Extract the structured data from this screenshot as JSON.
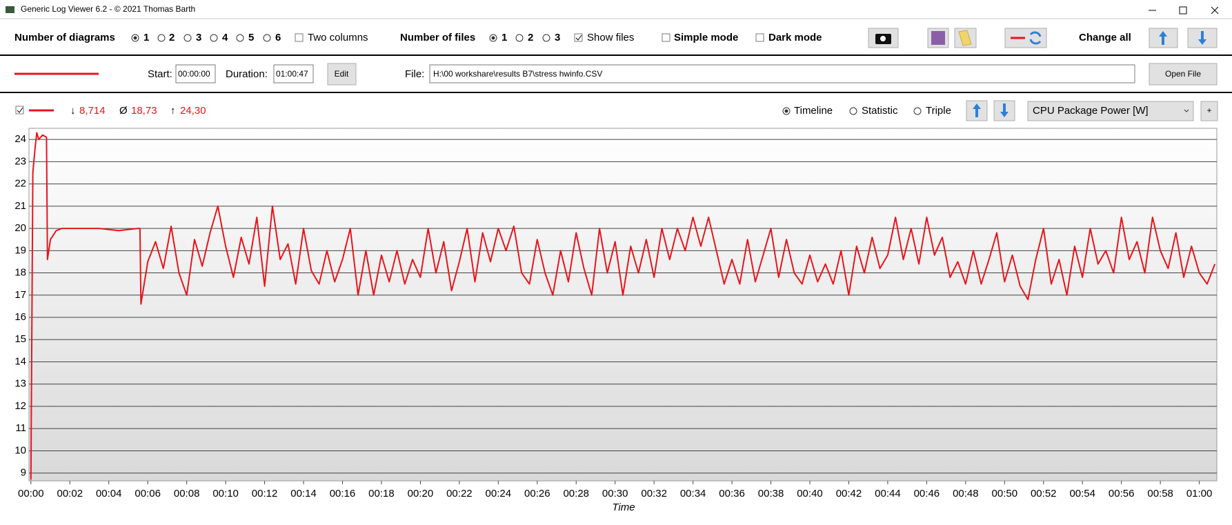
{
  "window": {
    "title": "Generic Log Viewer 6.2 - © 2021 Thomas Barth"
  },
  "toolbar": {
    "diagrams_label": "Number of diagrams",
    "diagram_options": [
      "1",
      "2",
      "3",
      "4",
      "5",
      "6"
    ],
    "two_columns": "Two columns",
    "files_label": "Number of files",
    "file_options": [
      "1",
      "2",
      "3"
    ],
    "show_files": "Show files",
    "simple_mode": "Simple mode",
    "dark_mode": "Dark mode",
    "change_all": "Change all"
  },
  "file_row": {
    "start_label": "Start:",
    "start": "00:00:00",
    "duration_label": "Duration:",
    "duration": "01:00:47",
    "edit": "Edit",
    "file_label": "File:",
    "file_path": "H:\\00 workshare\\results B7\\stress hwinfo.CSV",
    "open_file": "Open File"
  },
  "diagram_header": {
    "min_symbol": "↓",
    "min": "8,714",
    "avg_symbol": "Ø",
    "avg": "18,73",
    "max_symbol": "↑",
    "max": "24,30",
    "modes": [
      "Timeline",
      "Statistic",
      "Triple"
    ],
    "channel": "CPU Package Power [W]",
    "add": "+"
  },
  "chart_data": {
    "type": "line",
    "x_label": "Time",
    "color": "#e8141b",
    "grid": true,
    "xlim": [
      -0.1,
      60.9
    ],
    "ylim": [
      8.65,
      24.5
    ],
    "yticks": [
      9,
      10,
      11,
      12,
      13,
      14,
      15,
      16,
      17,
      18,
      19,
      20,
      21,
      22,
      23,
      24
    ],
    "xticks": [
      {
        "value": 0,
        "label": "00:00"
      },
      {
        "value": 2,
        "label": "00:02"
      },
      {
        "value": 4,
        "label": "00:04"
      },
      {
        "value": 6,
        "label": "00:06"
      },
      {
        "value": 8,
        "label": "00:08"
      },
      {
        "value": 10,
        "label": "00:10"
      },
      {
        "value": 12,
        "label": "00:12"
      },
      {
        "value": 14,
        "label": "00:14"
      },
      {
        "value": 16,
        "label": "00:16"
      },
      {
        "value": 18,
        "label": "00:18"
      },
      {
        "value": 20,
        "label": "00:20"
      },
      {
        "value": 22,
        "label": "00:22"
      },
      {
        "value": 24,
        "label": "00:24"
      },
      {
        "value": 26,
        "label": "00:26"
      },
      {
        "value": 28,
        "label": "00:28"
      },
      {
        "value": 30,
        "label": "00:30"
      },
      {
        "value": 32,
        "label": "00:32"
      },
      {
        "value": 34,
        "label": "00:34"
      },
      {
        "value": 36,
        "label": "00:36"
      },
      {
        "value": 38,
        "label": "00:38"
      },
      {
        "value": 40,
        "label": "00:40"
      },
      {
        "value": 42,
        "label": "00:42"
      },
      {
        "value": 44,
        "label": "00:44"
      },
      {
        "value": 46,
        "label": "00:46"
      },
      {
        "value": 48,
        "label": "00:48"
      },
      {
        "value": 50,
        "label": "00:50"
      },
      {
        "value": 52,
        "label": "00:52"
      },
      {
        "value": 54,
        "label": "00:54"
      },
      {
        "value": 56,
        "label": "00:56"
      },
      {
        "value": 58,
        "label": "00:58"
      },
      {
        "value": 60,
        "label": "01:00"
      }
    ],
    "x": [
      0,
      0.1,
      0.2,
      0.3,
      0.4,
      0.6,
      0.8,
      0.85,
      1.0,
      1.3,
      1.6,
      2.5,
      3.5,
      4.5,
      5.5,
      5.6,
      5.65,
      6.0,
      6.4,
      6.8,
      7.2,
      7.6,
      8.0,
      8.4,
      8.8,
      9.2,
      9.6,
      10.0,
      10.4,
      10.8,
      11.2,
      11.6,
      12.0,
      12.4,
      12.8,
      13.2,
      13.6,
      14.0,
      14.4,
      14.8,
      15.2,
      15.6,
      16.0,
      16.4,
      16.8,
      17.2,
      17.6,
      18.0,
      18.4,
      18.8,
      19.2,
      19.6,
      20.0,
      20.4,
      20.8,
      21.2,
      21.6,
      22.0,
      22.4,
      22.8,
      23.2,
      23.6,
      24.0,
      24.4,
      24.8,
      25.2,
      25.6,
      26.0,
      26.4,
      26.8,
      27.2,
      27.6,
      28.0,
      28.4,
      28.8,
      29.2,
      29.6,
      30.0,
      30.4,
      30.8,
      31.2,
      31.6,
      32.0,
      32.4,
      32.8,
      33.2,
      33.6,
      34.0,
      34.4,
      34.8,
      35.2,
      35.6,
      36.0,
      36.4,
      36.8,
      37.2,
      37.6,
      38.0,
      38.4,
      38.8,
      39.2,
      39.6,
      40.0,
      40.4,
      40.8,
      41.2,
      41.6,
      42.0,
      42.4,
      42.8,
      43.2,
      43.6,
      44.0,
      44.4,
      44.8,
      45.2,
      45.6,
      46.0,
      46.4,
      46.8,
      47.2,
      47.6,
      48.0,
      48.4,
      48.8,
      49.2,
      49.6,
      50.0,
      50.4,
      50.8,
      51.2,
      51.6,
      52.0,
      52.4,
      52.8,
      53.2,
      53.6,
      54.0,
      54.4,
      54.8,
      55.2,
      55.6,
      56.0,
      56.4,
      56.8,
      57.2,
      57.6,
      58.0,
      58.4,
      58.8,
      59.2,
      59.6,
      60.0,
      60.4,
      60.8
    ],
    "values": [
      8.7,
      22.5,
      23.5,
      24.3,
      24.0,
      24.2,
      24.1,
      18.6,
      19.5,
      19.9,
      20.0,
      20.0,
      20.0,
      19.9,
      20.0,
      20.0,
      16.6,
      18.5,
      19.4,
      18.2,
      20.1,
      18.0,
      17.0,
      19.5,
      18.3,
      19.8,
      21.0,
      19.2,
      17.8,
      19.6,
      18.4,
      20.5,
      17.4,
      21.0,
      18.6,
      19.3,
      17.5,
      20.0,
      18.1,
      17.5,
      19.0,
      17.6,
      18.6,
      20.0,
      17.0,
      19.0,
      17.0,
      18.8,
      17.6,
      19.0,
      17.5,
      18.6,
      17.8,
      20.0,
      18.0,
      19.4,
      17.2,
      18.5,
      20.0,
      17.6,
      19.8,
      18.5,
      20.0,
      19.0,
      20.1,
      18.0,
      17.5,
      19.5,
      18.0,
      17.0,
      19.0,
      17.6,
      19.8,
      18.2,
      17.0,
      20.0,
      18.0,
      19.4,
      17.0,
      19.2,
      18.0,
      19.5,
      17.8,
      20.0,
      18.6,
      20.0,
      19.0,
      20.5,
      19.2,
      20.5,
      19.0,
      17.5,
      18.6,
      17.5,
      19.5,
      17.6,
      18.8,
      20.0,
      17.8,
      19.5,
      18.0,
      17.5,
      18.8,
      17.6,
      18.4,
      17.5,
      19.0,
      17.0,
      19.2,
      18.0,
      19.6,
      18.2,
      18.8,
      20.5,
      18.6,
      20.0,
      18.4,
      20.5,
      18.8,
      19.6,
      17.8,
      18.5,
      17.5,
      19.0,
      17.5,
      18.6,
      19.8,
      17.6,
      18.8,
      17.4,
      16.8,
      18.6,
      20.0,
      17.5,
      18.6,
      17.0,
      19.2,
      17.8,
      20.0,
      18.4,
      19.0,
      18.0,
      20.5,
      18.6,
      19.4,
      18.0,
      20.5,
      19.0,
      18.2,
      19.8,
      17.8,
      19.2,
      18.0,
      17.5,
      18.4
    ]
  }
}
